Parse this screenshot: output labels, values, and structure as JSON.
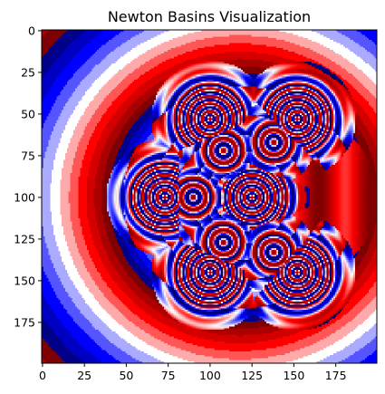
{
  "chart_data": {
    "type": "heatmap",
    "title": "Newton Basins Visualization",
    "xlabel": "",
    "ylabel": "",
    "grid": false,
    "xlim": [
      0,
      199
    ],
    "ylim": [
      199,
      0
    ],
    "image_shape": [
      200,
      200
    ],
    "colormap": "seismic",
    "x_ticks": [
      0,
      25,
      50,
      75,
      100,
      125,
      150,
      175
    ],
    "y_ticks": [
      0,
      25,
      50,
      75,
      100,
      125,
      150,
      175
    ],
    "x_tick_labels": [
      "0",
      "25",
      "50",
      "75",
      "100",
      "125",
      "150",
      "175"
    ],
    "y_tick_labels": [
      "0",
      "25",
      "50",
      "75",
      "100",
      "125",
      "150",
      "175"
    ],
    "roots": [
      {
        "x": 100,
        "y": 53,
        "rings": 3
      },
      {
        "x": 152,
        "y": 53,
        "rings": 3
      },
      {
        "x": 73,
        "y": 100,
        "rings": 3
      },
      {
        "x": 125,
        "y": 100,
        "rings": 3
      },
      {
        "x": 100,
        "y": 145,
        "rings": 3
      },
      {
        "x": 152,
        "y": 145,
        "rings": 3
      },
      {
        "x": 108,
        "y": 72,
        "rings": 1
      },
      {
        "x": 138,
        "y": 67,
        "rings": 1
      },
      {
        "x": 90,
        "y": 100,
        "rings": 1
      },
      {
        "x": 108,
        "y": 127,
        "rings": 1
      },
      {
        "x": 138,
        "y": 133,
        "rings": 1
      }
    ]
  }
}
